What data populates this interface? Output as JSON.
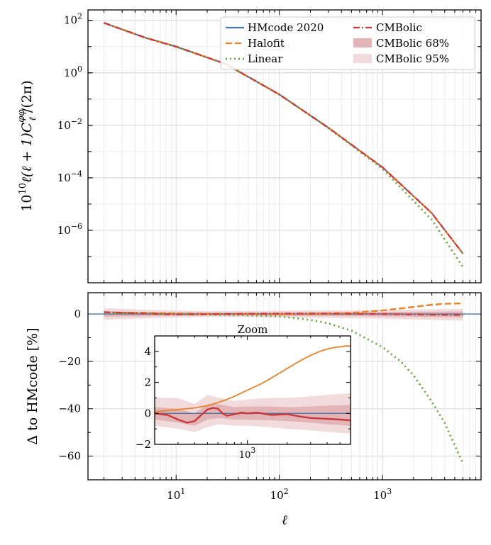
{
  "chart_data": [
    {
      "type": "line",
      "xscale": "log",
      "yscale": "log",
      "xlim": [
        1.4,
        9000
      ],
      "ylim": [
        1e-08,
        250
      ],
      "ylabel": "10¹⁰ℓ(ℓ+1)C_ℓ^φφ/(2π)",
      "ylabel_parts": {
        "prefix": "10",
        "sup": "10",
        "mid": "ℓ(ℓ + 1)C",
        "sub": "ℓ",
        "sup2": "φφ",
        "suffix": "/(2π)"
      },
      "yticks": [
        {
          "v": 100,
          "b": "10",
          "e": "2"
        },
        {
          "v": 1,
          "b": "10",
          "e": "0"
        },
        {
          "v": 0.01,
          "b": "10",
          "e": "−2"
        },
        {
          "v": 0.0001,
          "b": "10",
          "e": "−4"
        },
        {
          "v": 1e-06,
          "b": "10",
          "e": "−6"
        }
      ],
      "grid": true,
      "legend": {
        "position": "top-right",
        "entries": [
          {
            "label": "HMcode 2020",
            "kind": "line",
            "color": "#4a76a8"
          },
          {
            "label": "CMBolic",
            "kind": "dashdot",
            "color": "#c8383a"
          },
          {
            "label": "Halofit",
            "kind": "dash",
            "color": "#e8822a"
          },
          {
            "label": "CMBolic 68%",
            "kind": "patch",
            "color": "#e2b4b6"
          },
          {
            "label": "Linear",
            "kind": "dot",
            "color": "#6aa33c"
          },
          {
            "label": "CMBolic 95%",
            "kind": "patch",
            "color": "#f2dbdc"
          }
        ]
      },
      "series": [
        {
          "name": "HMcode 2020",
          "color": "#4a76a8",
          "x": [
            2,
            5,
            10,
            30,
            100,
            300,
            1000,
            3000,
            6000
          ],
          "y": [
            80,
            22,
            10,
            2.2,
            0.15,
            0.008,
            0.00025,
            4.5e-06,
            1.3e-07
          ]
        },
        {
          "name": "Halofit",
          "color": "#e8822a",
          "x": [
            2,
            5,
            10,
            30,
            100,
            300,
            1000,
            3000,
            6000
          ],
          "y": [
            80,
            22,
            10,
            2.2,
            0.15,
            0.008,
            0.00025,
            4.5e-06,
            1.3e-07
          ]
        },
        {
          "name": "Linear",
          "color": "#6aa33c",
          "x": [
            2,
            5,
            10,
            30,
            100,
            300,
            1000,
            3000,
            6000
          ],
          "y": [
            80,
            22,
            10,
            2.2,
            0.15,
            0.0078,
            0.00022,
            2.5e-06,
            4e-08
          ]
        },
        {
          "name": "CMBolic",
          "color": "#c8383a",
          "x": [
            2,
            5,
            10,
            30,
            100,
            300,
            1000,
            3000,
            6000
          ],
          "y": [
            80,
            22,
            10,
            2.2,
            0.15,
            0.008,
            0.00025,
            4.5e-06,
            1.3e-07
          ]
        }
      ]
    },
    {
      "type": "line",
      "xscale": "log",
      "xlim": [
        1.4,
        9000
      ],
      "ylim": [
        -70,
        9
      ],
      "xlabel": "ℓ",
      "ylabel": "Δ to HMcode [%]",
      "xticks": [
        {
          "v": 10,
          "b": "10",
          "e": "1"
        },
        {
          "v": 100,
          "b": "10",
          "e": "2"
        },
        {
          "v": 1000,
          "b": "10",
          "e": "3"
        }
      ],
      "yticks": [
        0,
        -20,
        -40,
        -60
      ],
      "grid": true,
      "series": [
        {
          "name": "HMcode 2020",
          "color": "#4a76a8",
          "x": [
            1.4,
            9000
          ],
          "y": [
            0,
            0
          ]
        },
        {
          "name": "Halofit",
          "color": "#e8822a",
          "x": [
            2,
            10,
            50,
            200,
            500,
            1000,
            2000,
            3000,
            4000,
            6000
          ],
          "y": [
            0.7,
            0.2,
            0,
            0,
            0.5,
            1.5,
            3,
            3.9,
            4.3,
            4.5
          ]
        },
        {
          "name": "Linear",
          "color": "#6aa33c",
          "x": [
            2,
            10,
            50,
            100,
            200,
            300,
            500,
            1000,
            1500,
            2000,
            3000,
            4000,
            6000
          ],
          "y": [
            0.5,
            0,
            -0.5,
            -1,
            -2.5,
            -4,
            -7,
            -14,
            -20,
            -26,
            -37,
            -46,
            -63
          ]
        },
        {
          "name": "CMBolic",
          "color": "#c8383a",
          "x": [
            2,
            5,
            10,
            50,
            200,
            1000,
            3000,
            6000
          ],
          "y": [
            0.8,
            0.2,
            -0.2,
            0.1,
            0.2,
            0,
            -0.3,
            -0.4
          ]
        }
      ],
      "bands": [
        {
          "name": "CMBolic 95%",
          "color": "#f2dbdc",
          "x": [
            2,
            5,
            20,
            100,
            500,
            1000,
            3000,
            6000
          ],
          "lo": [
            -2.5,
            -1.8,
            -1.2,
            -1.5,
            -1.8,
            -2,
            -2.5,
            -2.8
          ],
          "hi": [
            2.5,
            1.8,
            1.2,
            1.4,
            1.6,
            1.8,
            2,
            2.2
          ]
        },
        {
          "name": "CMBolic 68%",
          "color": "#e2b4b6",
          "x": [
            2,
            5,
            20,
            100,
            500,
            1000,
            3000,
            6000
          ],
          "lo": [
            -1.2,
            -0.9,
            -0.6,
            -0.8,
            -0.9,
            -1,
            -1.3,
            -1.4
          ],
          "hi": [
            1.2,
            0.9,
            0.6,
            0.7,
            0.8,
            0.9,
            1,
            1.1
          ]
        }
      ],
      "inset": {
        "title": "Zoom",
        "xscale": "log",
        "xlim": [
          200,
          6000
        ],
        "ylim": [
          -2,
          5
        ],
        "xticks": [
          {
            "v": 1000,
            "b": "10",
            "e": "3"
          }
        ],
        "yticks": [
          4,
          2,
          0,
          -2
        ],
        "series": [
          {
            "name": "HMcode 2020",
            "color": "#4a76a8",
            "x": [
              200,
              6000
            ],
            "y": [
              0,
              0
            ]
          },
          {
            "name": "Halofit",
            "color": "#e8822a",
            "x": [
              200,
              300,
              400,
              500,
              600,
              700,
              800,
              1000,
              1300,
              1600,
              2000,
              2500,
              3000,
              3500,
              4000,
              4500,
              5000,
              5500,
              6000
            ],
            "y": [
              0.1,
              0.25,
              0.35,
              0.5,
              0.7,
              0.9,
              1.1,
              1.5,
              1.95,
              2.4,
              2.9,
              3.4,
              3.75,
              4.0,
              4.15,
              4.25,
              4.3,
              4.35,
              4.35
            ]
          },
          {
            "name": "CMBolic",
            "color": "#c8383a",
            "x": [
              200,
              250,
              300,
              350,
              400,
              450,
              500,
              550,
              600,
              650,
              700,
              800,
              900,
              1000,
              1200,
              1500,
              2000,
              2500,
              3000,
              4000,
              5000,
              6000
            ],
            "y": [
              0,
              -0.1,
              -0.4,
              -0.6,
              -0.5,
              -0.1,
              0.25,
              0.35,
              0.3,
              0.0,
              -0.15,
              -0.05,
              0.05,
              0.0,
              0.05,
              -0.1,
              -0.05,
              -0.2,
              -0.3,
              -0.35,
              -0.4,
              -0.45
            ]
          }
        ],
        "bands": [
          {
            "name": "CMBolic 95%",
            "color": "#f2dbdc",
            "x": [
              200,
              300,
              400,
              500,
              600,
              800,
              1000,
              1500,
              2000,
              3000,
              4000,
              6000
            ],
            "lo": [
              -0.8,
              -1.0,
              -1.2,
              -0.9,
              -0.7,
              -0.8,
              -0.8,
              -0.9,
              -1.0,
              -1.1,
              -1.2,
              -1.3
            ],
            "hi": [
              1.0,
              1.0,
              0.6,
              1.2,
              1.0,
              0.8,
              0.9,
              1.0,
              1.0,
              1.1,
              1.2,
              1.3
            ]
          },
          {
            "name": "CMBolic 68%",
            "color": "#e2b4b6",
            "x": [
              200,
              300,
              400,
              500,
              600,
              800,
              1000,
              1500,
              2000,
              3000,
              4000,
              6000
            ],
            "lo": [
              -0.4,
              -0.6,
              -0.8,
              -0.4,
              -0.3,
              -0.4,
              -0.4,
              -0.45,
              -0.5,
              -0.6,
              -0.7,
              -0.8
            ],
            "hi": [
              0.4,
              0.3,
              0.0,
              0.6,
              0.6,
              0.4,
              0.45,
              0.45,
              0.4,
              0.45,
              0.5,
              0.55
            ]
          }
        ]
      }
    }
  ]
}
